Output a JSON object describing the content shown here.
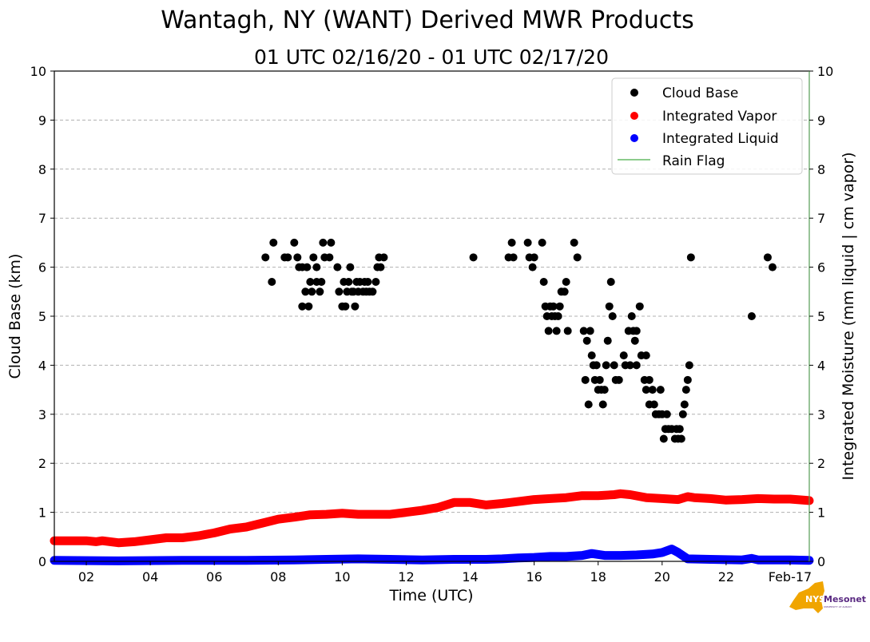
{
  "chart_data": {
    "type": "scatter",
    "title": "Wantagh, NY (WANT) Derived MWR Products",
    "subtitle": "01 UTC 02/16/20 - 01 UTC 02/17/20",
    "xlabel": "Time (UTC)",
    "ylabel": "Cloud Base (km)",
    "ylabel_right": "Integrated Moisture (mm liquid | cm vapor)",
    "xlim_hours": [
      1,
      24.6
    ],
    "ylim": [
      0,
      10
    ],
    "ylim_right": [
      0,
      10
    ],
    "grid": true,
    "x_ticks": [
      {
        "hour": 2,
        "label": "02"
      },
      {
        "hour": 4,
        "label": "04"
      },
      {
        "hour": 6,
        "label": "06"
      },
      {
        "hour": 8,
        "label": "08"
      },
      {
        "hour": 10,
        "label": "10"
      },
      {
        "hour": 12,
        "label": "12"
      },
      {
        "hour": 14,
        "label": "14"
      },
      {
        "hour": 16,
        "label": "16"
      },
      {
        "hour": 18,
        "label": "18"
      },
      {
        "hour": 20,
        "label": "20"
      },
      {
        "hour": 22,
        "label": "22"
      },
      {
        "hour": 24,
        "label": "Feb-17"
      }
    ],
    "y_ticks": [
      "0",
      "1",
      "2",
      "3",
      "4",
      "5",
      "6",
      "7",
      "8",
      "9",
      "10"
    ],
    "legend": {
      "placement": "top-right",
      "entries": [
        {
          "label": "Cloud Base",
          "color": "#000000",
          "marker": "dot"
        },
        {
          "label": "Integrated Vapor",
          "color": "#ff0000",
          "marker": "dot"
        },
        {
          "label": "Integrated Liquid",
          "color": "#0000ff",
          "marker": "dot"
        },
        {
          "label": "Rain Flag",
          "color": "#66bb66",
          "marker": "line"
        }
      ]
    },
    "series": [
      {
        "name": "Cloud Base",
        "color": "#000000",
        "points": [
          [
            7.6,
            6.2
          ],
          [
            7.8,
            5.7
          ],
          [
            7.85,
            6.5
          ],
          [
            8.2,
            6.2
          ],
          [
            8.3,
            6.2
          ],
          [
            8.5,
            6.5
          ],
          [
            8.6,
            6.2
          ],
          [
            8.65,
            6.0
          ],
          [
            8.75,
            6.0
          ],
          [
            8.75,
            5.2
          ],
          [
            8.85,
            5.5
          ],
          [
            8.9,
            6.0
          ],
          [
            8.95,
            5.2
          ],
          [
            9.0,
            5.7
          ],
          [
            9.05,
            5.5
          ],
          [
            9.1,
            6.2
          ],
          [
            9.2,
            6.0
          ],
          [
            9.2,
            5.7
          ],
          [
            9.3,
            5.5
          ],
          [
            9.35,
            5.7
          ],
          [
            9.4,
            6.5
          ],
          [
            9.45,
            6.2
          ],
          [
            9.6,
            6.2
          ],
          [
            9.65,
            6.5
          ],
          [
            9.85,
            6.0
          ],
          [
            9.9,
            5.5
          ],
          [
            10.0,
            5.2
          ],
          [
            10.05,
            5.7
          ],
          [
            10.1,
            5.2
          ],
          [
            10.15,
            5.5
          ],
          [
            10.2,
            5.7
          ],
          [
            10.25,
            6.0
          ],
          [
            10.3,
            5.5
          ],
          [
            10.35,
            5.5
          ],
          [
            10.4,
            5.2
          ],
          [
            10.45,
            5.7
          ],
          [
            10.5,
            5.5
          ],
          [
            10.55,
            5.7
          ],
          [
            10.65,
            5.5
          ],
          [
            10.7,
            5.7
          ],
          [
            10.75,
            5.5
          ],
          [
            10.8,
            5.7
          ],
          [
            10.85,
            5.5
          ],
          [
            10.95,
            5.5
          ],
          [
            11.05,
            5.7
          ],
          [
            11.1,
            6.0
          ],
          [
            11.15,
            6.2
          ],
          [
            11.2,
            6.0
          ],
          [
            11.3,
            6.2
          ],
          [
            14.1,
            6.2
          ],
          [
            15.2,
            6.2
          ],
          [
            15.3,
            6.5
          ],
          [
            15.35,
            6.2
          ],
          [
            15.8,
            6.5
          ],
          [
            15.85,
            6.2
          ],
          [
            15.95,
            6.0
          ],
          [
            16.0,
            6.2
          ],
          [
            16.25,
            6.5
          ],
          [
            16.3,
            5.7
          ],
          [
            16.35,
            5.2
          ],
          [
            16.4,
            5.0
          ],
          [
            16.45,
            4.7
          ],
          [
            16.5,
            5.2
          ],
          [
            16.55,
            5.0
          ],
          [
            16.6,
            5.2
          ],
          [
            16.65,
            5.0
          ],
          [
            16.7,
            4.7
          ],
          [
            16.75,
            5.0
          ],
          [
            16.8,
            5.2
          ],
          [
            16.85,
            5.5
          ],
          [
            16.95,
            5.5
          ],
          [
            17.0,
            5.7
          ],
          [
            17.05,
            4.7
          ],
          [
            17.25,
            6.5
          ],
          [
            17.35,
            6.2
          ],
          [
            17.55,
            4.7
          ],
          [
            17.6,
            3.7
          ],
          [
            17.65,
            4.5
          ],
          [
            17.7,
            3.2
          ],
          [
            17.75,
            4.7
          ],
          [
            17.8,
            4.2
          ],
          [
            17.85,
            4.0
          ],
          [
            17.9,
            3.7
          ],
          [
            17.95,
            4.0
          ],
          [
            18.0,
            3.5
          ],
          [
            18.05,
            3.7
          ],
          [
            18.1,
            3.5
          ],
          [
            18.15,
            3.2
          ],
          [
            18.2,
            3.5
          ],
          [
            18.25,
            4.0
          ],
          [
            18.3,
            4.5
          ],
          [
            18.35,
            5.2
          ],
          [
            18.4,
            5.7
          ],
          [
            18.45,
            5.0
          ],
          [
            18.5,
            4.0
          ],
          [
            18.55,
            3.7
          ],
          [
            18.65,
            3.7
          ],
          [
            18.8,
            4.2
          ],
          [
            18.85,
            4.0
          ],
          [
            18.95,
            4.7
          ],
          [
            19.0,
            4.0
          ],
          [
            19.05,
            5.0
          ],
          [
            19.1,
            4.7
          ],
          [
            19.15,
            4.5
          ],
          [
            19.2,
            4.0
          ],
          [
            19.2,
            4.7
          ],
          [
            19.3,
            5.2
          ],
          [
            19.35,
            4.2
          ],
          [
            19.45,
            3.7
          ],
          [
            19.5,
            4.2
          ],
          [
            19.5,
            3.5
          ],
          [
            19.6,
            3.7
          ],
          [
            19.6,
            3.2
          ],
          [
            19.7,
            3.5
          ],
          [
            19.75,
            3.2
          ],
          [
            19.8,
            3.0
          ],
          [
            19.9,
            3.0
          ],
          [
            19.95,
            3.5
          ],
          [
            20.0,
            3.0
          ],
          [
            20.05,
            2.5
          ],
          [
            20.1,
            2.7
          ],
          [
            20.15,
            3.0
          ],
          [
            20.2,
            2.7
          ],
          [
            20.3,
            2.7
          ],
          [
            20.4,
            2.5
          ],
          [
            20.45,
            2.7
          ],
          [
            20.5,
            2.5
          ],
          [
            20.55,
            2.7
          ],
          [
            20.6,
            2.5
          ],
          [
            20.65,
            3.0
          ],
          [
            20.7,
            3.2
          ],
          [
            20.75,
            3.5
          ],
          [
            20.8,
            3.7
          ],
          [
            20.85,
            4.0
          ],
          [
            20.9,
            6.2
          ],
          [
            22.8,
            5.0
          ],
          [
            23.3,
            6.2
          ],
          [
            23.45,
            6.0
          ]
        ]
      },
      {
        "name": "Integrated Vapor",
        "color": "#ff0000",
        "points": [
          [
            1.0,
            0.42
          ],
          [
            1.5,
            0.42
          ],
          [
            2.0,
            0.42
          ],
          [
            2.3,
            0.4
          ],
          [
            2.5,
            0.42
          ],
          [
            3.0,
            0.38
          ],
          [
            3.5,
            0.4
          ],
          [
            4.0,
            0.44
          ],
          [
            4.5,
            0.48
          ],
          [
            5.0,
            0.48
          ],
          [
            5.5,
            0.52
          ],
          [
            6.0,
            0.58
          ],
          [
            6.5,
            0.66
          ],
          [
            7.0,
            0.7
          ],
          [
            7.5,
            0.78
          ],
          [
            8.0,
            0.86
          ],
          [
            8.5,
            0.9
          ],
          [
            9.0,
            0.95
          ],
          [
            9.5,
            0.96
          ],
          [
            10.0,
            0.98
          ],
          [
            10.5,
            0.96
          ],
          [
            11.0,
            0.96
          ],
          [
            11.5,
            0.96
          ],
          [
            12.0,
            1.0
          ],
          [
            12.5,
            1.04
          ],
          [
            13.0,
            1.1
          ],
          [
            13.5,
            1.2
          ],
          [
            14.0,
            1.2
          ],
          [
            14.5,
            1.15
          ],
          [
            15.0,
            1.18
          ],
          [
            15.5,
            1.22
          ],
          [
            16.0,
            1.26
          ],
          [
            16.5,
            1.28
          ],
          [
            17.0,
            1.3
          ],
          [
            17.5,
            1.34
          ],
          [
            18.0,
            1.34
          ],
          [
            18.5,
            1.36
          ],
          [
            18.7,
            1.38
          ],
          [
            19.0,
            1.36
          ],
          [
            19.5,
            1.3
          ],
          [
            20.0,
            1.28
          ],
          [
            20.5,
            1.26
          ],
          [
            20.8,
            1.32
          ],
          [
            21.0,
            1.3
          ],
          [
            21.5,
            1.28
          ],
          [
            22.0,
            1.25
          ],
          [
            22.5,
            1.26
          ],
          [
            23.0,
            1.28
          ],
          [
            23.5,
            1.27
          ],
          [
            24.0,
            1.27
          ],
          [
            24.6,
            1.24
          ]
        ]
      },
      {
        "name": "Integrated Liquid",
        "color": "#0000ff",
        "points": [
          [
            1.0,
            0.02
          ],
          [
            3.0,
            0.01
          ],
          [
            5.0,
            0.02
          ],
          [
            7.0,
            0.02
          ],
          [
            8.5,
            0.03
          ],
          [
            9.5,
            0.04
          ],
          [
            10.5,
            0.05
          ],
          [
            11.5,
            0.04
          ],
          [
            12.5,
            0.03
          ],
          [
            13.5,
            0.04
          ],
          [
            14.5,
            0.04
          ],
          [
            15.0,
            0.05
          ],
          [
            15.5,
            0.07
          ],
          [
            16.0,
            0.08
          ],
          [
            16.5,
            0.1
          ],
          [
            17.0,
            0.1
          ],
          [
            17.5,
            0.12
          ],
          [
            17.8,
            0.16
          ],
          [
            18.2,
            0.12
          ],
          [
            18.7,
            0.12
          ],
          [
            19.2,
            0.13
          ],
          [
            19.7,
            0.15
          ],
          [
            20.0,
            0.18
          ],
          [
            20.3,
            0.25
          ],
          [
            20.5,
            0.18
          ],
          [
            20.8,
            0.05
          ],
          [
            21.5,
            0.04
          ],
          [
            22.5,
            0.03
          ],
          [
            22.8,
            0.06
          ],
          [
            23.0,
            0.03
          ],
          [
            24.0,
            0.03
          ],
          [
            24.6,
            0.02
          ]
        ]
      }
    ]
  },
  "logo": {
    "text_main": "NYS",
    "text_brand": "Mesonet",
    "text_sub": "UNIVERSITY AT ALBANY"
  }
}
